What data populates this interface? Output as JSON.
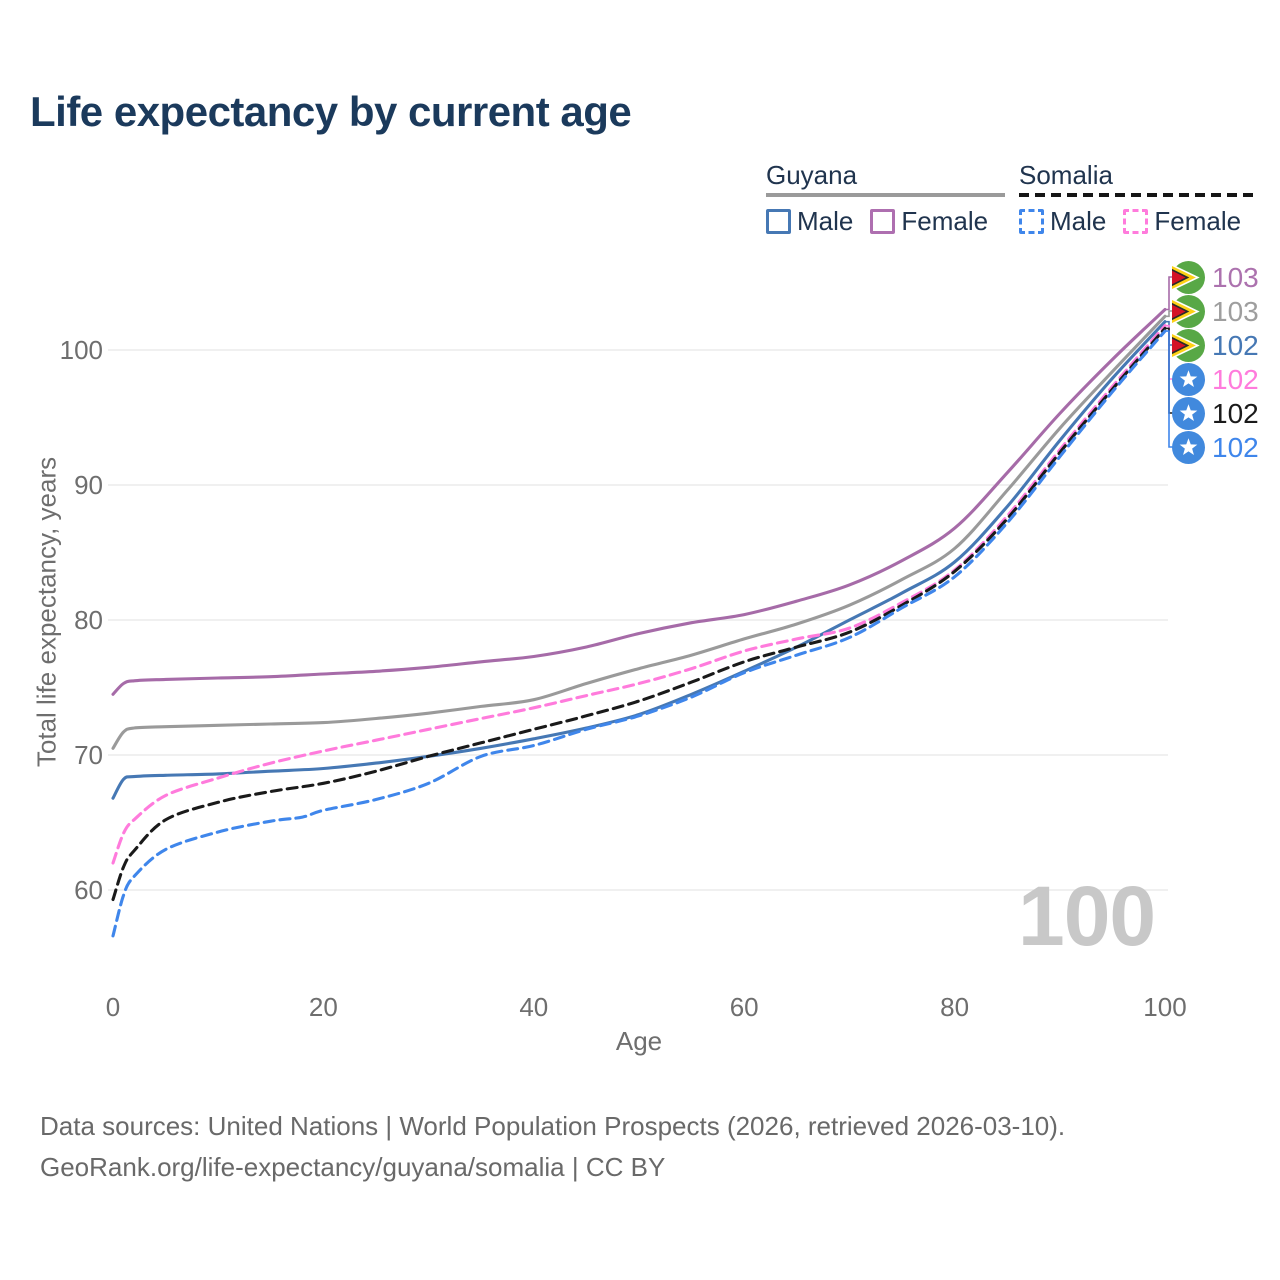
{
  "title": "Life expectancy by current age",
  "legend": {
    "guyana": {
      "label": "Guyana",
      "male_label": "Male",
      "female_label": "Female"
    },
    "somalia": {
      "label": "Somalia",
      "male_label": "Male",
      "female_label": "Female"
    }
  },
  "axes": {
    "x_title": "Age",
    "y_title": "Total life expectancy, years",
    "x_ticks": [
      0,
      20,
      40,
      60,
      80,
      100
    ],
    "y_ticks": [
      60,
      70,
      80,
      90,
      100
    ]
  },
  "watermark": "100",
  "footer": {
    "line1": "Data sources: United Nations | World Population Prospects (2026, retrieved 2026-03-10).",
    "line2": "GeoRank.org/life-expectancy/guyana/somalia | CC BY"
  },
  "colors": {
    "title": "#1b3a5c",
    "grid": "#e7e7e7",
    "axis_text": "#6e6e6e",
    "watermark": "#c8c8c8",
    "guyana_female": "#A66BA8",
    "guyana_all": "#9A9A9A",
    "guyana_male": "#4678B4",
    "somalia_female": "#FF7BDC",
    "somalia_all": "#1A1A1A",
    "somalia_male": "#3F86EB"
  },
  "chart_data": {
    "type": "line",
    "title": "Life expectancy by current age",
    "xlabel": "Age",
    "ylabel": "Total life expectancy, years",
    "xlim": [
      0,
      100
    ],
    "ylim_gridlines": [
      60,
      100
    ],
    "grid": "horizontal-only",
    "series": [
      {
        "id": "guyana-female",
        "country": "Guyana",
        "sex": "Female",
        "color": "#A66BA8",
        "label_color": "#AC72AE",
        "dashed": false,
        "flag": "guyana",
        "end_label": "103",
        "points": [
          [
            0,
            74.5
          ],
          [
            1,
            75.3
          ],
          [
            2,
            75.5
          ],
          [
            5,
            75.6
          ],
          [
            10,
            75.7
          ],
          [
            15,
            75.8
          ],
          [
            20,
            76.0
          ],
          [
            25,
            76.2
          ],
          [
            30,
            76.5
          ],
          [
            35,
            76.9
          ],
          [
            40,
            77.3
          ],
          [
            45,
            78.0
          ],
          [
            50,
            79.0
          ],
          [
            55,
            79.8
          ],
          [
            60,
            80.4
          ],
          [
            65,
            81.4
          ],
          [
            70,
            82.6
          ],
          [
            75,
            84.4
          ],
          [
            80,
            86.8
          ],
          [
            85,
            90.9
          ],
          [
            90,
            95.3
          ],
          [
            95,
            99.3
          ],
          [
            100,
            103.0
          ]
        ]
      },
      {
        "id": "guyana-all",
        "country": "Guyana",
        "sex": "All",
        "color": "#9A9A9A",
        "label_color": "#9E9E9E",
        "dashed": false,
        "flag": "guyana",
        "end_label": "103",
        "points": [
          [
            0,
            70.5
          ],
          [
            1,
            71.7
          ],
          [
            2,
            72.0
          ],
          [
            5,
            72.1
          ],
          [
            10,
            72.2
          ],
          [
            15,
            72.3
          ],
          [
            20,
            72.4
          ],
          [
            25,
            72.7
          ],
          [
            30,
            73.1
          ],
          [
            35,
            73.6
          ],
          [
            40,
            74.1
          ],
          [
            45,
            75.3
          ],
          [
            50,
            76.4
          ],
          [
            55,
            77.4
          ],
          [
            60,
            78.6
          ],
          [
            65,
            79.7
          ],
          [
            70,
            81.1
          ],
          [
            75,
            83.0
          ],
          [
            80,
            85.3
          ],
          [
            85,
            89.6
          ],
          [
            90,
            94.2
          ],
          [
            95,
            98.4
          ],
          [
            100,
            102.5
          ]
        ]
      },
      {
        "id": "guyana-male",
        "country": "Guyana",
        "sex": "Male",
        "color": "#4678B4",
        "label_color": "#4678B4",
        "dashed": false,
        "flag": "guyana",
        "end_label": "102",
        "points": [
          [
            0,
            66.8
          ],
          [
            1,
            68.2
          ],
          [
            2,
            68.4
          ],
          [
            5,
            68.5
          ],
          [
            10,
            68.6
          ],
          [
            15,
            68.8
          ],
          [
            20,
            69.0
          ],
          [
            25,
            69.4
          ],
          [
            30,
            69.9
          ],
          [
            35,
            70.5
          ],
          [
            40,
            71.2
          ],
          [
            45,
            72.0
          ],
          [
            50,
            73.0
          ],
          [
            55,
            74.5
          ],
          [
            60,
            76.2
          ],
          [
            65,
            78.0
          ],
          [
            70,
            80.0
          ],
          [
            75,
            82.0
          ],
          [
            80,
            84.3
          ],
          [
            85,
            88.4
          ],
          [
            90,
            93.3
          ],
          [
            95,
            97.9
          ],
          [
            100,
            102.1
          ]
        ]
      },
      {
        "id": "somalia-female",
        "country": "Somalia",
        "sex": "Female",
        "color": "#FF7BDC",
        "label_color": "#FF7BDC",
        "dashed": true,
        "flag": "somalia",
        "end_label": "102",
        "points": [
          [
            0,
            62.0
          ],
          [
            1,
            64.2
          ],
          [
            2,
            65.2
          ],
          [
            5,
            67.0
          ],
          [
            10,
            68.3
          ],
          [
            15,
            69.4
          ],
          [
            20,
            70.3
          ],
          [
            25,
            71.1
          ],
          [
            30,
            71.9
          ],
          [
            35,
            72.7
          ],
          [
            40,
            73.5
          ],
          [
            45,
            74.4
          ],
          [
            50,
            75.3
          ],
          [
            55,
            76.4
          ],
          [
            60,
            77.7
          ],
          [
            65,
            78.6
          ],
          [
            70,
            79.4
          ],
          [
            75,
            81.3
          ],
          [
            80,
            83.7
          ],
          [
            85,
            87.7
          ],
          [
            90,
            92.6
          ],
          [
            95,
            97.3
          ],
          [
            100,
            101.8
          ]
        ]
      },
      {
        "id": "somalia-all",
        "country": "Somalia",
        "sex": "All",
        "color": "#1A1A1A",
        "label_color": "#1A1A1A",
        "dashed": true,
        "flag": "somalia",
        "end_label": "102",
        "points": [
          [
            0,
            59.3
          ],
          [
            1,
            61.7
          ],
          [
            2,
            62.9
          ],
          [
            5,
            65.2
          ],
          [
            10,
            66.5
          ],
          [
            15,
            67.3
          ],
          [
            20,
            67.9
          ],
          [
            25,
            68.8
          ],
          [
            30,
            69.9
          ],
          [
            35,
            70.9
          ],
          [
            40,
            71.9
          ],
          [
            45,
            72.9
          ],
          [
            50,
            74.0
          ],
          [
            55,
            75.4
          ],
          [
            60,
            76.9
          ],
          [
            65,
            78.0
          ],
          [
            70,
            79.1
          ],
          [
            75,
            81.1
          ],
          [
            80,
            83.6
          ],
          [
            85,
            87.5
          ],
          [
            90,
            92.4
          ],
          [
            95,
            97.1
          ],
          [
            100,
            101.6
          ]
        ]
      },
      {
        "id": "somalia-male",
        "country": "Somalia",
        "sex": "Male",
        "color": "#3F86EB",
        "label_color": "#3F86EB",
        "dashed": true,
        "flag": "somalia",
        "end_label": "102",
        "points": [
          [
            0,
            56.6
          ],
          [
            1,
            59.6
          ],
          [
            2,
            61.0
          ],
          [
            5,
            63.0
          ],
          [
            10,
            64.3
          ],
          [
            15,
            65.1
          ],
          [
            18,
            65.4
          ],
          [
            20,
            65.9
          ],
          [
            25,
            66.7
          ],
          [
            30,
            67.9
          ],
          [
            35,
            69.9
          ],
          [
            40,
            70.7
          ],
          [
            45,
            71.9
          ],
          [
            50,
            72.9
          ],
          [
            55,
            74.3
          ],
          [
            60,
            76.1
          ],
          [
            65,
            77.4
          ],
          [
            70,
            78.7
          ],
          [
            75,
            80.9
          ],
          [
            80,
            83.2
          ],
          [
            85,
            87.2
          ],
          [
            90,
            92.1
          ],
          [
            95,
            96.9
          ],
          [
            100,
            101.4
          ]
        ]
      }
    ]
  }
}
